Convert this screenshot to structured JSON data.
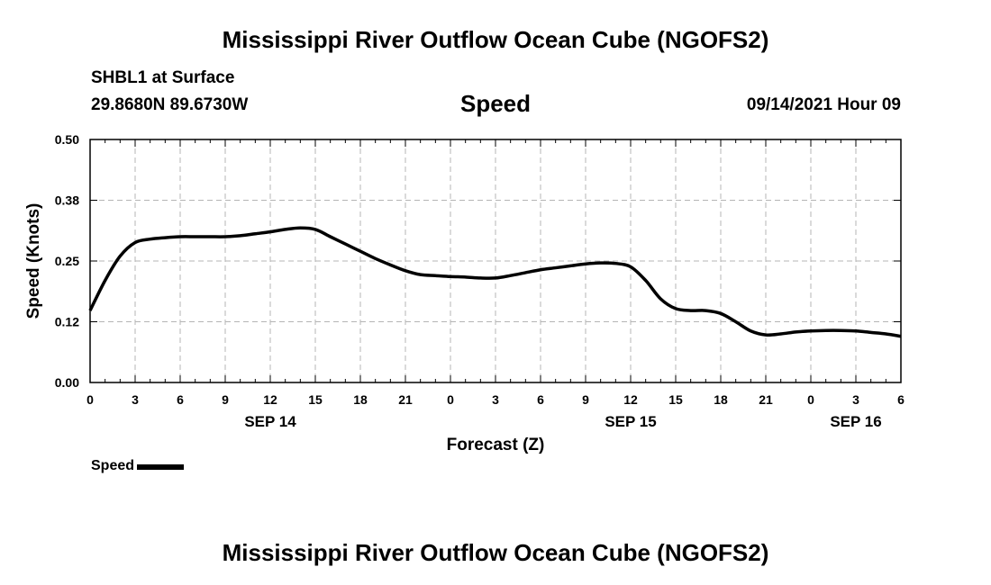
{
  "header": {
    "title": "Mississippi River Outflow Ocean Cube (NGOFS2)",
    "station": "SHBL1 at Surface",
    "coordinates": "29.8680N  89.6730W",
    "plot_name": "Speed",
    "datetime": "09/14/2021 Hour 09"
  },
  "footer": {
    "title": "Mississippi River Outflow Ocean Cube (NGOFS2)"
  },
  "colors": {
    "line": "#000000",
    "grid": "#b4b4b4",
    "background": "#ffffff"
  },
  "chart_data": {
    "type": "line",
    "title": "Speed",
    "xlabel": "Forecast (Z)",
    "ylabel": "Speed (Knots)",
    "xlim": [
      0,
      54
    ],
    "ylim": [
      0,
      0.5
    ],
    "x_units": "hours from 2021-09-14 00Z",
    "x_ticks": [
      {
        "x": 0,
        "label": "0"
      },
      {
        "x": 3,
        "label": "3"
      },
      {
        "x": 6,
        "label": "6"
      },
      {
        "x": 9,
        "label": "9"
      },
      {
        "x": 12,
        "label": "12"
      },
      {
        "x": 15,
        "label": "15"
      },
      {
        "x": 18,
        "label": "18"
      },
      {
        "x": 21,
        "label": "21"
      },
      {
        "x": 24,
        "label": "0"
      },
      {
        "x": 27,
        "label": "3"
      },
      {
        "x": 30,
        "label": "6"
      },
      {
        "x": 33,
        "label": "9"
      },
      {
        "x": 36,
        "label": "12"
      },
      {
        "x": 39,
        "label": "15"
      },
      {
        "x": 42,
        "label": "18"
      },
      {
        "x": 45,
        "label": "21"
      },
      {
        "x": 48,
        "label": "0"
      },
      {
        "x": 51,
        "label": "3"
      },
      {
        "x": 54,
        "label": "6"
      }
    ],
    "date_labels": [
      {
        "x": 12,
        "label": "SEP 14"
      },
      {
        "x": 36,
        "label": "SEP 15"
      },
      {
        "x": 51,
        "label": "SEP 16"
      }
    ],
    "y_ticks": [
      {
        "y": 0.0,
        "label": "0.00"
      },
      {
        "y": 0.125,
        "label": "0.12"
      },
      {
        "y": 0.25,
        "label": "0.25"
      },
      {
        "y": 0.375,
        "label": "0.38"
      },
      {
        "y": 0.5,
        "label": "0.50"
      }
    ],
    "grid": true,
    "legend": {
      "position": "bottom-left"
    },
    "series": [
      {
        "name": "Speed",
        "x": [
          0,
          1,
          2,
          3,
          4,
          5,
          6,
          7,
          8,
          9,
          10,
          11,
          12,
          13,
          14,
          15,
          16,
          17,
          18,
          19,
          20,
          21,
          22,
          23,
          24,
          25,
          26,
          27,
          28,
          29,
          30,
          31,
          32,
          33,
          34,
          35,
          36,
          37,
          38,
          39,
          40,
          41,
          42,
          43,
          44,
          45,
          46,
          47,
          48,
          49,
          50,
          51,
          52,
          53,
          54
        ],
        "values": [
          0.148,
          0.21,
          0.26,
          0.288,
          0.295,
          0.298,
          0.3,
          0.3,
          0.3,
          0.3,
          0.302,
          0.306,
          0.31,
          0.315,
          0.318,
          0.315,
          0.3,
          0.285,
          0.27,
          0.255,
          0.242,
          0.23,
          0.222,
          0.22,
          0.218,
          0.217,
          0.215,
          0.215,
          0.22,
          0.226,
          0.232,
          0.236,
          0.24,
          0.244,
          0.246,
          0.245,
          0.238,
          0.21,
          0.172,
          0.152,
          0.148,
          0.148,
          0.142,
          0.125,
          0.106,
          0.098,
          0.1,
          0.104,
          0.106,
          0.107,
          0.107,
          0.106,
          0.103,
          0.1,
          0.095
        ]
      }
    ]
  }
}
